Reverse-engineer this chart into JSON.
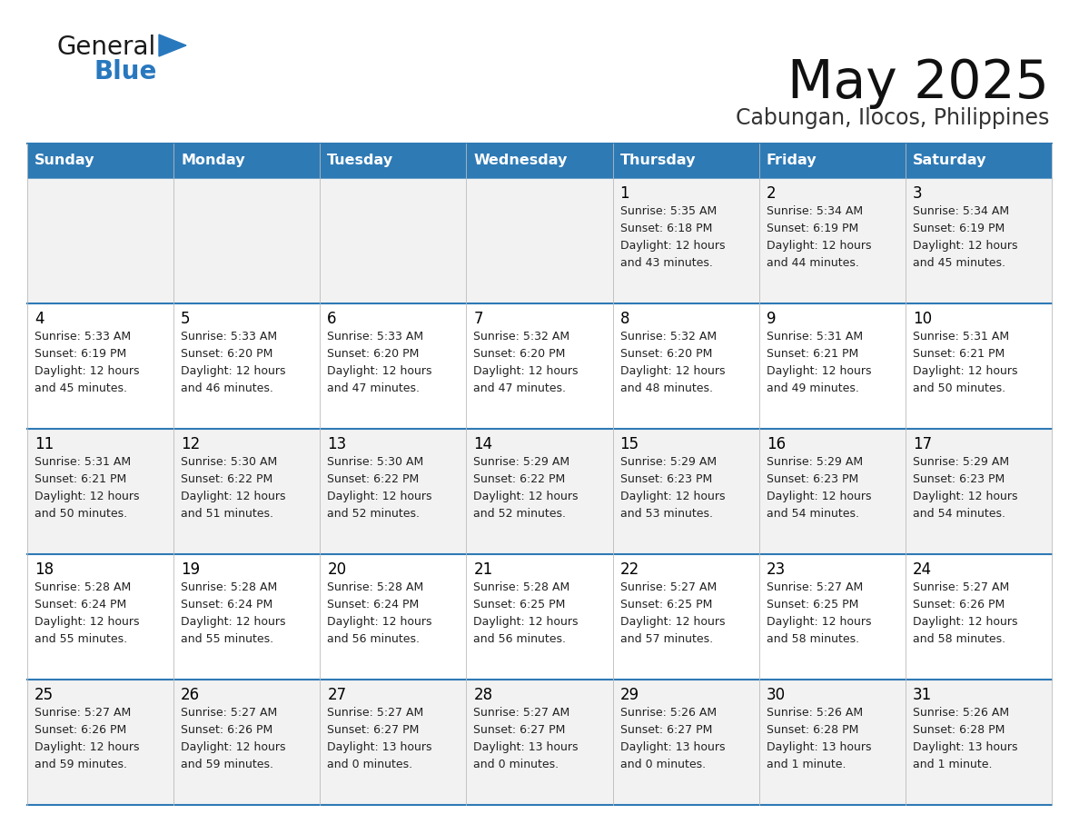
{
  "title": "May 2025",
  "subtitle": "Cabungan, Ilocos, Philippines",
  "days_of_week": [
    "Sunday",
    "Monday",
    "Tuesday",
    "Wednesday",
    "Thursday",
    "Friday",
    "Saturday"
  ],
  "header_bg": "#2E7AB5",
  "header_text": "#FFFFFF",
  "row_bg_even": "#F2F2F2",
  "row_bg_odd": "#FFFFFF",
  "cell_text": "#000000",
  "day_num_color": "#000000",
  "divider_color": "#2E7AB5",
  "calendar_data": [
    [
      null,
      null,
      null,
      null,
      {
        "day": 1,
        "sunrise": "5:35 AM",
        "sunset": "6:18 PM",
        "daylight": "12 hours and 43 minutes"
      },
      {
        "day": 2,
        "sunrise": "5:34 AM",
        "sunset": "6:19 PM",
        "daylight": "12 hours and 44 minutes"
      },
      {
        "day": 3,
        "sunrise": "5:34 AM",
        "sunset": "6:19 PM",
        "daylight": "12 hours and 45 minutes"
      }
    ],
    [
      {
        "day": 4,
        "sunrise": "5:33 AM",
        "sunset": "6:19 PM",
        "daylight": "12 hours and 45 minutes"
      },
      {
        "day": 5,
        "sunrise": "5:33 AM",
        "sunset": "6:20 PM",
        "daylight": "12 hours and 46 minutes"
      },
      {
        "day": 6,
        "sunrise": "5:33 AM",
        "sunset": "6:20 PM",
        "daylight": "12 hours and 47 minutes"
      },
      {
        "day": 7,
        "sunrise": "5:32 AM",
        "sunset": "6:20 PM",
        "daylight": "12 hours and 47 minutes"
      },
      {
        "day": 8,
        "sunrise": "5:32 AM",
        "sunset": "6:20 PM",
        "daylight": "12 hours and 48 minutes"
      },
      {
        "day": 9,
        "sunrise": "5:31 AM",
        "sunset": "6:21 PM",
        "daylight": "12 hours and 49 minutes"
      },
      {
        "day": 10,
        "sunrise": "5:31 AM",
        "sunset": "6:21 PM",
        "daylight": "12 hours and 50 minutes"
      }
    ],
    [
      {
        "day": 11,
        "sunrise": "5:31 AM",
        "sunset": "6:21 PM",
        "daylight": "12 hours and 50 minutes"
      },
      {
        "day": 12,
        "sunrise": "5:30 AM",
        "sunset": "6:22 PM",
        "daylight": "12 hours and 51 minutes"
      },
      {
        "day": 13,
        "sunrise": "5:30 AM",
        "sunset": "6:22 PM",
        "daylight": "12 hours and 52 minutes"
      },
      {
        "day": 14,
        "sunrise": "5:29 AM",
        "sunset": "6:22 PM",
        "daylight": "12 hours and 52 minutes"
      },
      {
        "day": 15,
        "sunrise": "5:29 AM",
        "sunset": "6:23 PM",
        "daylight": "12 hours and 53 minutes"
      },
      {
        "day": 16,
        "sunrise": "5:29 AM",
        "sunset": "6:23 PM",
        "daylight": "12 hours and 54 minutes"
      },
      {
        "day": 17,
        "sunrise": "5:29 AM",
        "sunset": "6:23 PM",
        "daylight": "12 hours and 54 minutes"
      }
    ],
    [
      {
        "day": 18,
        "sunrise": "5:28 AM",
        "sunset": "6:24 PM",
        "daylight": "12 hours and 55 minutes"
      },
      {
        "day": 19,
        "sunrise": "5:28 AM",
        "sunset": "6:24 PM",
        "daylight": "12 hours and 55 minutes"
      },
      {
        "day": 20,
        "sunrise": "5:28 AM",
        "sunset": "6:24 PM",
        "daylight": "12 hours and 56 minutes"
      },
      {
        "day": 21,
        "sunrise": "5:28 AM",
        "sunset": "6:25 PM",
        "daylight": "12 hours and 56 minutes"
      },
      {
        "day": 22,
        "sunrise": "5:27 AM",
        "sunset": "6:25 PM",
        "daylight": "12 hours and 57 minutes"
      },
      {
        "day": 23,
        "sunrise": "5:27 AM",
        "sunset": "6:25 PM",
        "daylight": "12 hours and 58 minutes"
      },
      {
        "day": 24,
        "sunrise": "5:27 AM",
        "sunset": "6:26 PM",
        "daylight": "12 hours and 58 minutes"
      }
    ],
    [
      {
        "day": 25,
        "sunrise": "5:27 AM",
        "sunset": "6:26 PM",
        "daylight": "12 hours and 59 minutes"
      },
      {
        "day": 26,
        "sunrise": "5:27 AM",
        "sunset": "6:26 PM",
        "daylight": "12 hours and 59 minutes"
      },
      {
        "day": 27,
        "sunrise": "5:27 AM",
        "sunset": "6:27 PM",
        "daylight": "13 hours and 0 minutes"
      },
      {
        "day": 28,
        "sunrise": "5:27 AM",
        "sunset": "6:27 PM",
        "daylight": "13 hours and 0 minutes"
      },
      {
        "day": 29,
        "sunrise": "5:26 AM",
        "sunset": "6:27 PM",
        "daylight": "13 hours and 0 minutes"
      },
      {
        "day": 30,
        "sunrise": "5:26 AM",
        "sunset": "6:28 PM",
        "daylight": "13 hours and 1 minute"
      },
      {
        "day": 31,
        "sunrise": "5:26 AM",
        "sunset": "6:28 PM",
        "daylight": "13 hours and 1 minute"
      }
    ]
  ],
  "logo_color_general": "#1a1a1a",
  "logo_color_blue": "#2878BE",
  "logo_triangle_color": "#2878BE"
}
